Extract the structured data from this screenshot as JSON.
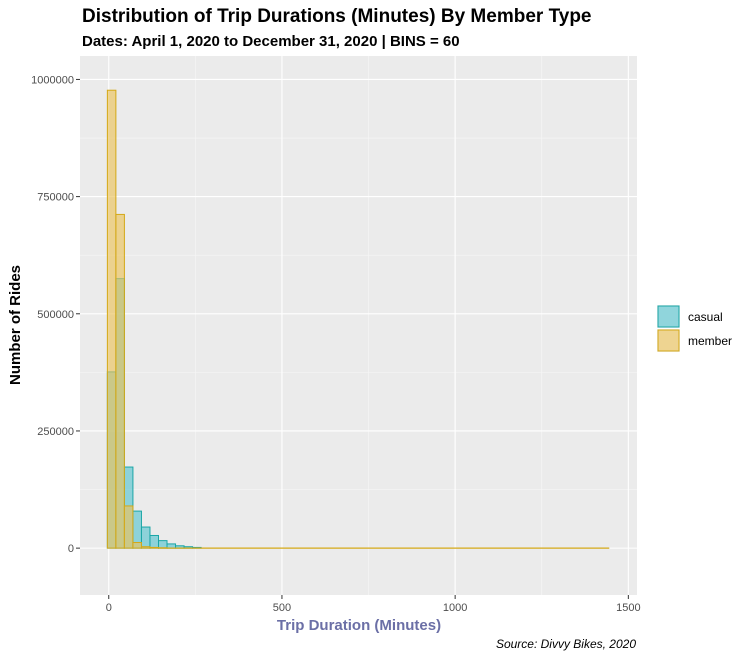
{
  "chart_data": {
    "type": "bar",
    "title": "Distribution of Trip Durations (Minutes) By Member Type",
    "subtitle": "Dates: April 1, 2020 to December 31, 2020 | BINS = 60",
    "xlabel": "Trip Duration (Minutes)",
    "ylabel": "Number of Rides",
    "caption": "Source: Divvy Bikes, 2020",
    "xlim": [
      -83,
      1525
    ],
    "ylim": [
      -100000,
      1050000
    ],
    "x_ticks": [
      0,
      500,
      1000,
      1500
    ],
    "x_tick_labels": [
      "0",
      "500",
      "1000",
      "1500"
    ],
    "y_ticks": [
      0,
      250000,
      500000,
      750000,
      1000000
    ],
    "y_tick_labels": [
      "0",
      "250000",
      "500000",
      "750000",
      "1000000"
    ],
    "bin_width": 24.6,
    "legend": {
      "position": "right",
      "entries": [
        "casual",
        "member"
      ]
    },
    "grid": true,
    "series": [
      {
        "name": "casual",
        "fill": "#5bc5d0",
        "stroke": "#1aa6a6",
        "bins": [
          {
            "start": -4,
            "value": 376000
          },
          {
            "start": 20.6,
            "value": 575000
          },
          {
            "start": 45.2,
            "value": 173000
          },
          {
            "start": 69.8,
            "value": 79000
          },
          {
            "start": 94.4,
            "value": 45000
          },
          {
            "start": 119,
            "value": 27000
          },
          {
            "start": 143.6,
            "value": 16000
          },
          {
            "start": 168.2,
            "value": 9000
          },
          {
            "start": 192.8,
            "value": 5000
          },
          {
            "start": 217.4,
            "value": 3000
          },
          {
            "start": 242,
            "value": 1500
          }
        ]
      },
      {
        "name": "member",
        "fill": "#ebc35c",
        "stroke": "#d4a817",
        "bins": [
          {
            "start": -4,
            "value": 977000
          },
          {
            "start": 20.6,
            "value": 712000
          },
          {
            "start": 45.2,
            "value": 90000
          },
          {
            "start": 69.8,
            "value": 12000
          },
          {
            "start": 94.4,
            "value": 3000
          },
          {
            "start": 119,
            "value": 1500
          },
          {
            "start": 143.6,
            "value": 800
          }
        ],
        "tail_to": 1445
      }
    ]
  }
}
